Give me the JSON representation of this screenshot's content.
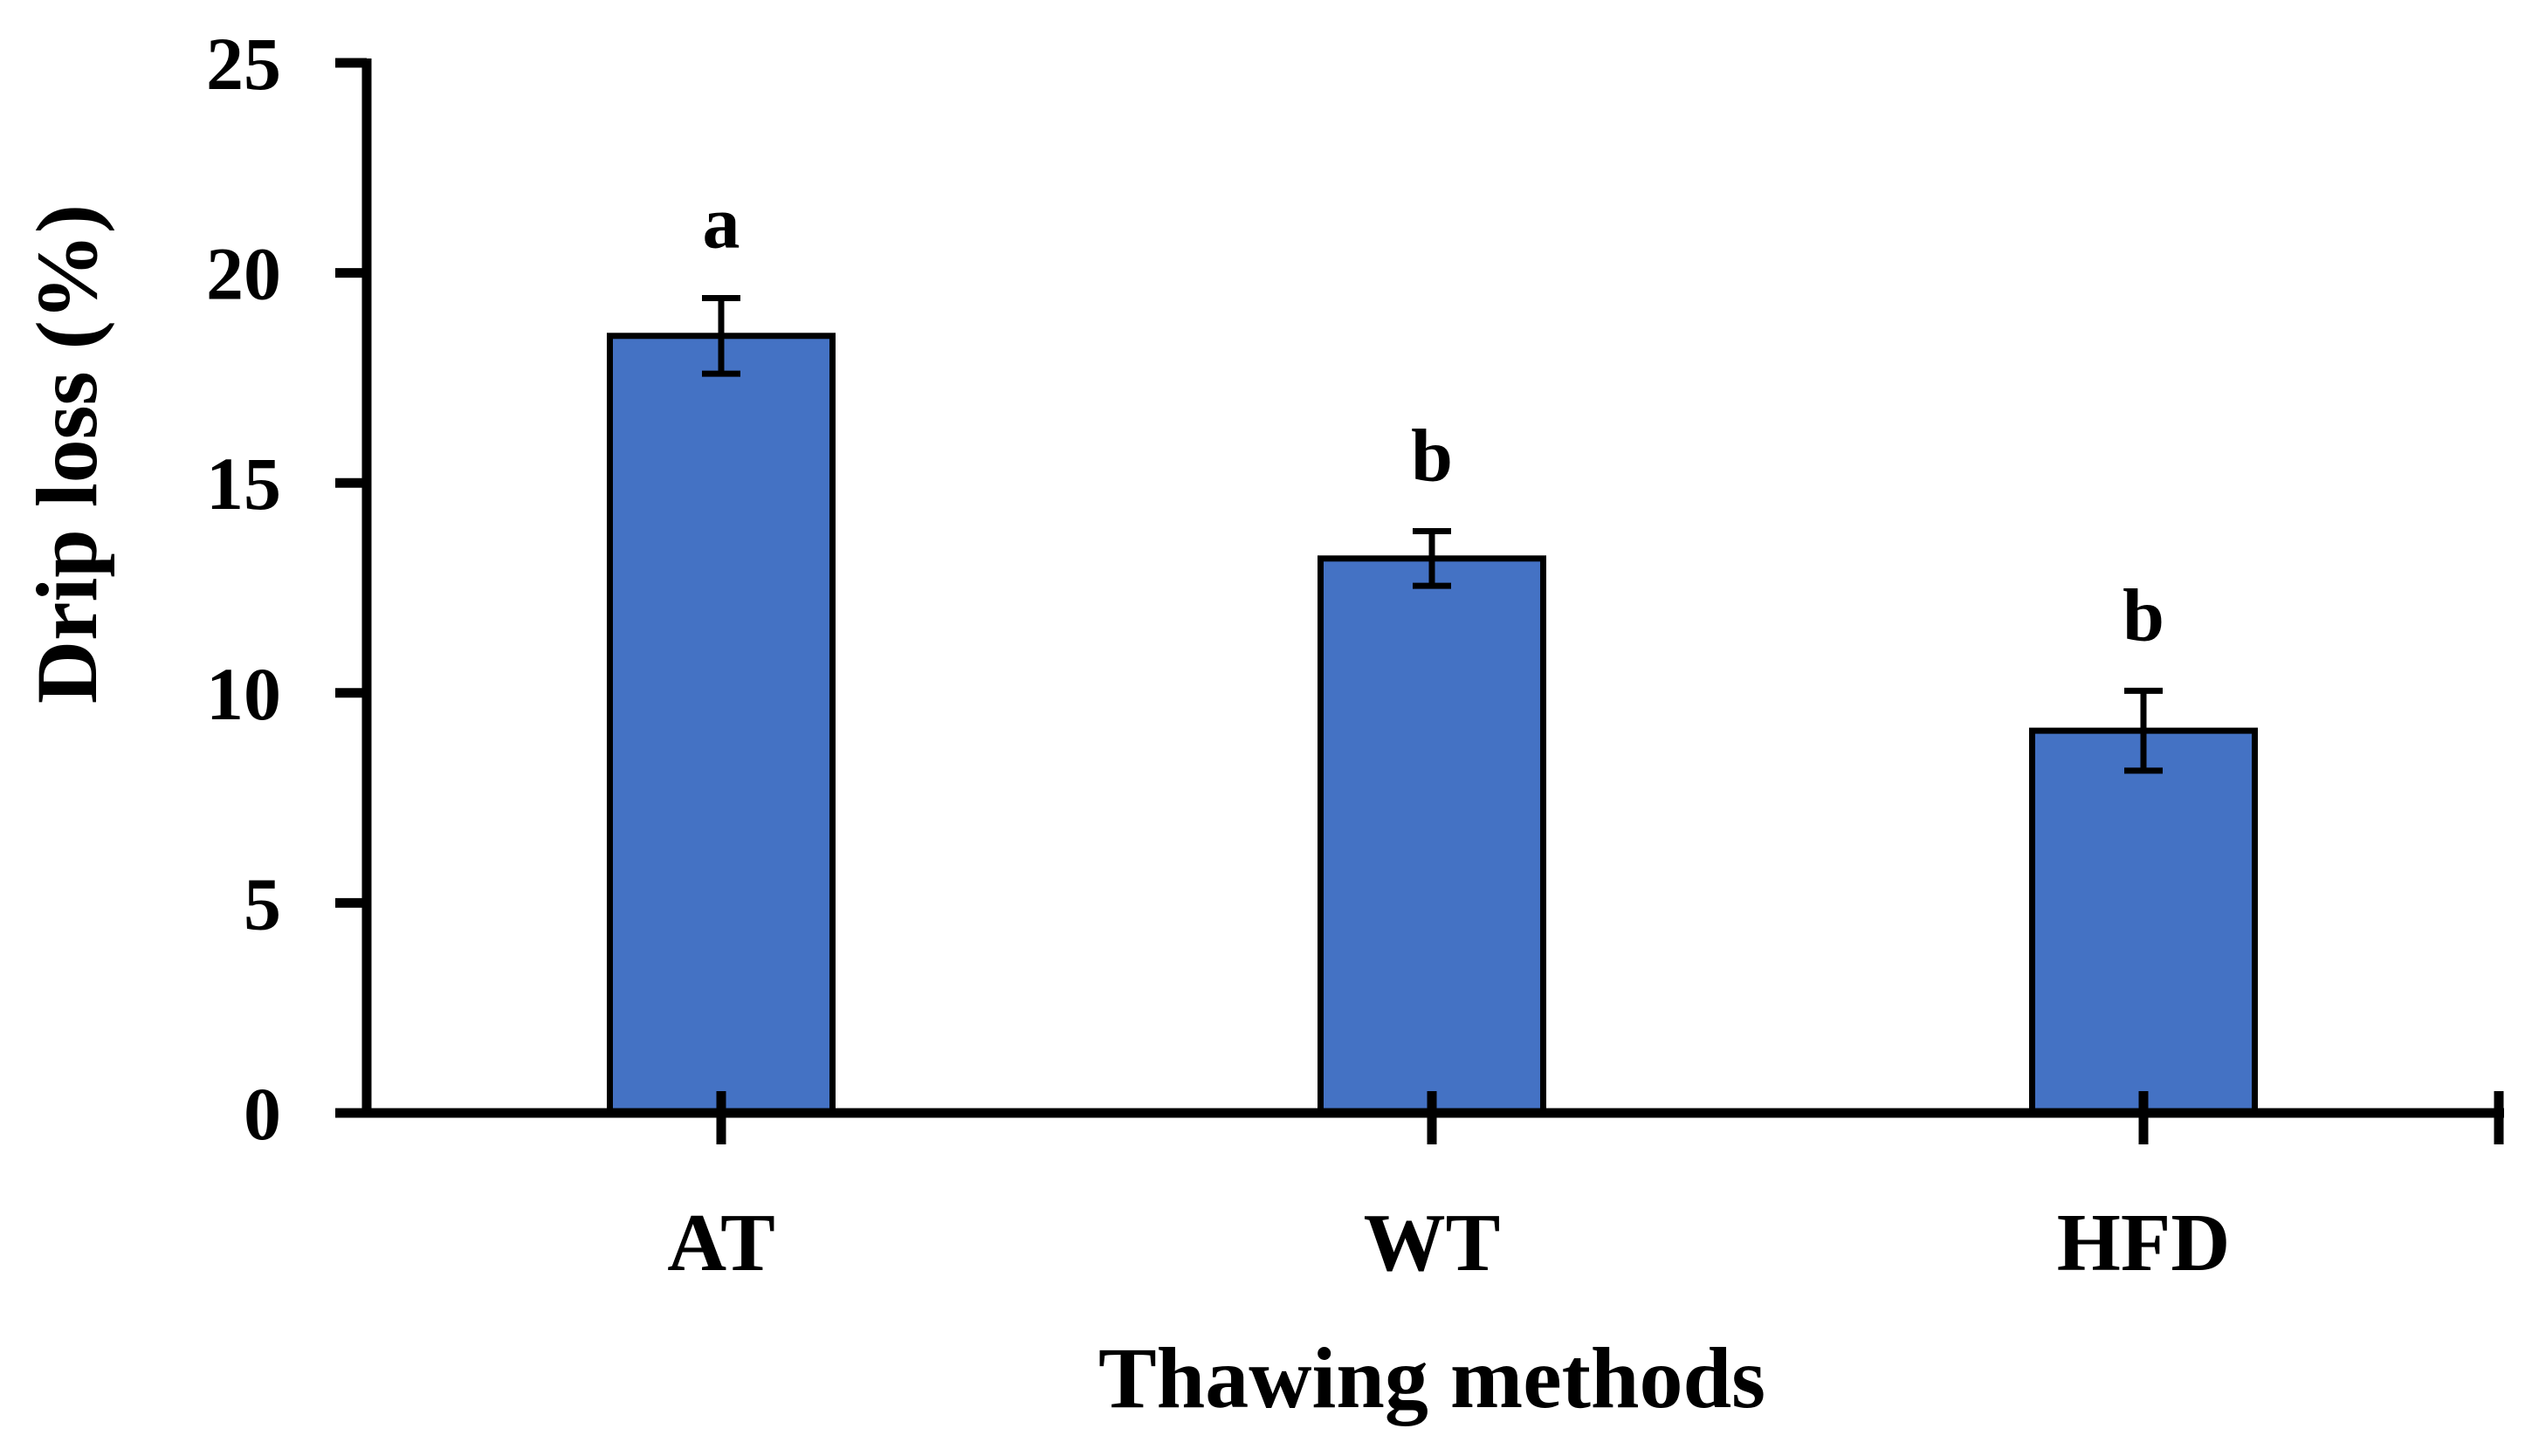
{
  "chart_data": {
    "type": "bar",
    "title": "",
    "xlabel": "Thawing methods",
    "ylabel": "Drip loss (%)",
    "ylim": [
      0,
      25
    ],
    "yticks": [
      0,
      5,
      10,
      15,
      20,
      25
    ],
    "categories": [
      "AT",
      "WT",
      "HFD"
    ],
    "values": [
      18.5,
      13.2,
      9.1
    ],
    "errors": [
      0.9,
      0.65,
      0.95
    ],
    "significance_letters": [
      "a",
      "b",
      "b"
    ],
    "bar_color": "#4472C4",
    "grid": false
  }
}
